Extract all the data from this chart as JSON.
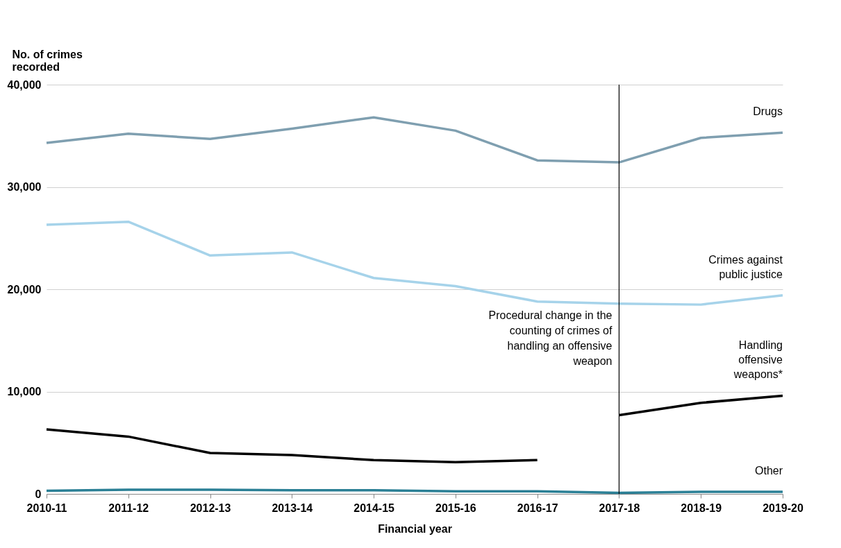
{
  "chart_data": {
    "type": "line",
    "ylabel": "No. of crimes recorded",
    "xlabel": "Financial year",
    "categories": [
      "2010-11",
      "2011-12",
      "2012-13",
      "2013-14",
      "2014-15",
      "2015-16",
      "2016-17",
      "2017-18",
      "2018-19",
      "2019-20"
    ],
    "series": [
      {
        "name": "Drugs",
        "color": "#7f9fb0",
        "values": [
          34300,
          35200,
          34700,
          35700,
          36800,
          35500,
          32600,
          32400,
          34800,
          35300
        ]
      },
      {
        "name": "Crimes against public justice",
        "color": "#a6d3ea",
        "values": [
          26300,
          26600,
          23300,
          23600,
          21100,
          20300,
          18800,
          18600,
          18500,
          19400
        ]
      },
      {
        "color": "#000000",
        "values": [
          6300,
          5600,
          4000,
          3800,
          3300,
          3100,
          3300,
          null,
          null,
          null
        ]
      },
      {
        "name": "Handling offensive weapons*",
        "color": "#000000",
        "values": [
          null,
          null,
          null,
          null,
          null,
          null,
          null,
          7700,
          8900,
          9600
        ]
      },
      {
        "name": "Other",
        "color": "#2a7f95",
        "values": [
          300,
          400,
          400,
          350,
          350,
          250,
          250,
          100,
          200,
          200
        ]
      }
    ],
    "ylim": [
      0,
      40000
    ],
    "yticks": [
      0,
      {
        "value": 10000,
        "label": "10,000"
      },
      {
        "value": 20000,
        "label": "20,000"
      },
      {
        "value": 30000,
        "label": "30,000"
      },
      {
        "value": 40000,
        "label": "40,000"
      }
    ],
    "grid": "y",
    "legend": false,
    "ref_lines": [
      {
        "axis": "x",
        "value": "2017-18",
        "label": "Procedural change in the counting of crimes of handling an offensive weapon",
        "color": "#000000"
      }
    ]
  }
}
